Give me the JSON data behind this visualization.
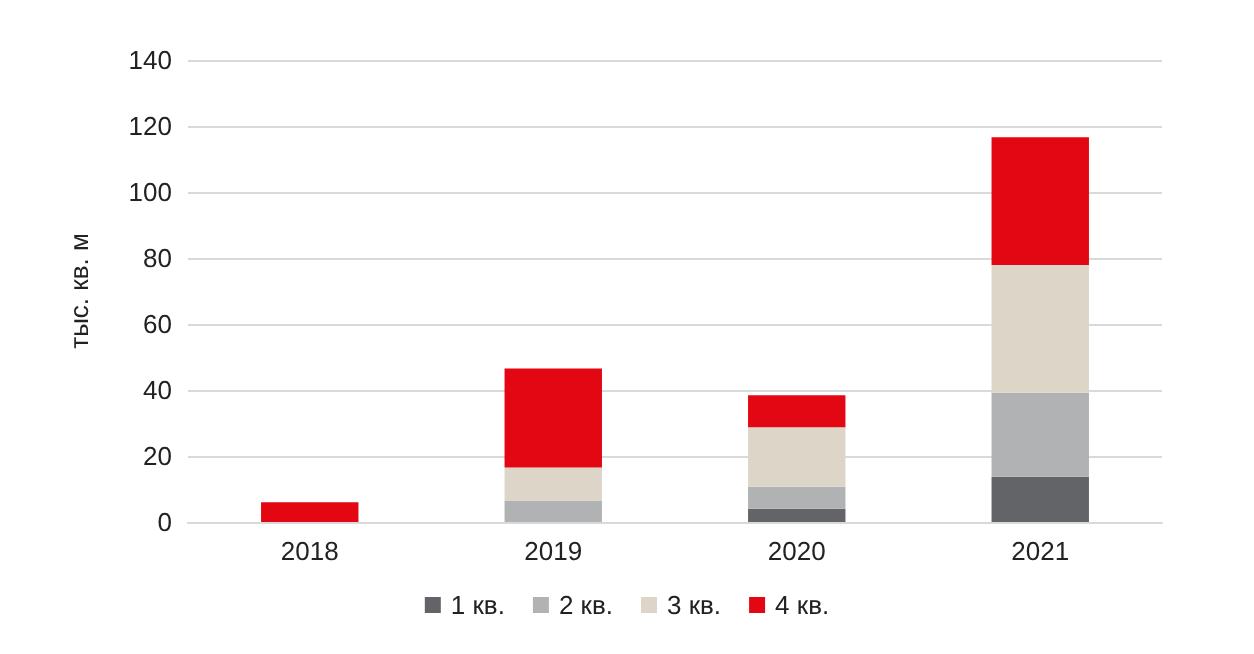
{
  "chart_data": {
    "type": "bar",
    "stacked": true,
    "ylabel": "тыс. кв. м",
    "categories": [
      "2018",
      "2019",
      "2020",
      "2021"
    ],
    "series": [
      {
        "name": "1 кв.",
        "color": "#636468",
        "values": [
          0,
          0,
          4,
          13.7
        ]
      },
      {
        "name": "2 кв.",
        "color": "#b1b2b4",
        "values": [
          0,
          6.5,
          6.7,
          25.5
        ]
      },
      {
        "name": "3 кв.",
        "color": "#ddd5c8",
        "values": [
          0,
          10,
          18,
          38.7
        ]
      },
      {
        "name": "4 кв.",
        "color": "#e30613",
        "values": [
          6,
          30,
          9.7,
          38.7
        ]
      }
    ],
    "ylim": [
      0,
      140
    ],
    "yticks": [
      0,
      20,
      40,
      60,
      80,
      100,
      120,
      140
    ],
    "grid": "y",
    "legend": "bottom"
  }
}
